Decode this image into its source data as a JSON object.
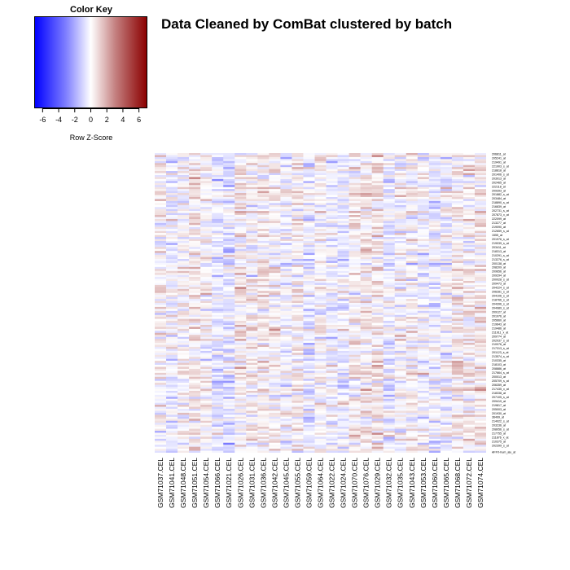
{
  "chart_data": {
    "type": "heatmap",
    "title": "Data Cleaned by ComBat clustered by batch",
    "color_key": {
      "title": "Color Key",
      "xlabel": "Row Z-Score",
      "ticks": [
        -6,
        -4,
        -2,
        0,
        2,
        4,
        6
      ],
      "range": [
        -7,
        7
      ],
      "colors": {
        "low": "#0000ff",
        "mid": "#ffffff",
        "high": "#8b0000"
      }
    },
    "columns": [
      "GSM71037.CEL",
      "GSM71041.CEL",
      "GSM71048.CEL",
      "GSM71051.CEL",
      "GSM71054.CEL",
      "GSM71066.CEL",
      "GSM71021.CEL",
      "GSM71026.CEL",
      "GSM71031.CEL",
      "GSM71036.CEL",
      "GSM71042.CEL",
      "GSM71045.CEL",
      "GSM71055.CEL",
      "GSM71059.CEL",
      "GSM71064.CEL",
      "GSM71022.CEL",
      "GSM71024.CEL",
      "GSM71070.CEL",
      "GSM71076.CEL",
      "GSM71029.CEL",
      "GSM71032.CEL",
      "GSM71035.CEL",
      "GSM71043.CEL",
      "GSM71053.CEL",
      "GSM71060.CEL",
      "GSM71065.CEL",
      "GSM71068.CEL",
      "GSM71072.CEL",
      "GSM71074.CEL"
    ],
    "row_labels": [
      "206811_at",
      "205241_at",
      "219491_at",
      "221903_s_at",
      "218818_at",
      "201406_s_at",
      "203913_at",
      "202465_at",
      "222118_at",
      "209393_at",
      "201882_s_at",
      "203484_at",
      "218890_s_at",
      "216839_at",
      "202731_s_at",
      "207873_x_at",
      "222099_at",
      "213277_at",
      "219090_at",
      "212659_s_at",
      "1555_at",
      "201976_s_at",
      "219039_s_at",
      "203411_at",
      "218313_at",
      "210291_s_at",
      "213276_s_at",
      "200138_at",
      "208209_at",
      "209656_at",
      "209294_at",
      "200028_s_at",
      "209473_at",
      "204224_s_at",
      "206281_s_at",
      "204106_s_at",
      "218766_s_at",
      "204396_s_at",
      "204989_s_at",
      "209127_at",
      "201976_at",
      "205660_at",
      "219643_at",
      "219486_at",
      "211911_x_at",
      "209774_at",
      "202037_s_at",
      "210076_at",
      "217313_s_at",
      "201123_s_at",
      "213574_s_at",
      "210335_at",
      "218103_at",
      "208886_at",
      "217664_s_at",
      "200013_at",
      "205709_s_at",
      "206359_at",
      "217435_x_at",
      "218338_at",
      "207105_s_at",
      "209419_at",
      "219817_at",
      "205003_at",
      "201930_at",
      "36499_at",
      "214022_s_at",
      "203236_at",
      "208056_s_at",
      "217755_at",
      "211876_x_at",
      "210375_at",
      "202399_s_at",
      "AFFX-hum_alu_at"
    ],
    "n_rows": 150,
    "cell_values": "dense row-standardized expression matrix (~150 probes x 29 samples), values roughly in [-7, 7]; too dense to transcribe individually"
  }
}
